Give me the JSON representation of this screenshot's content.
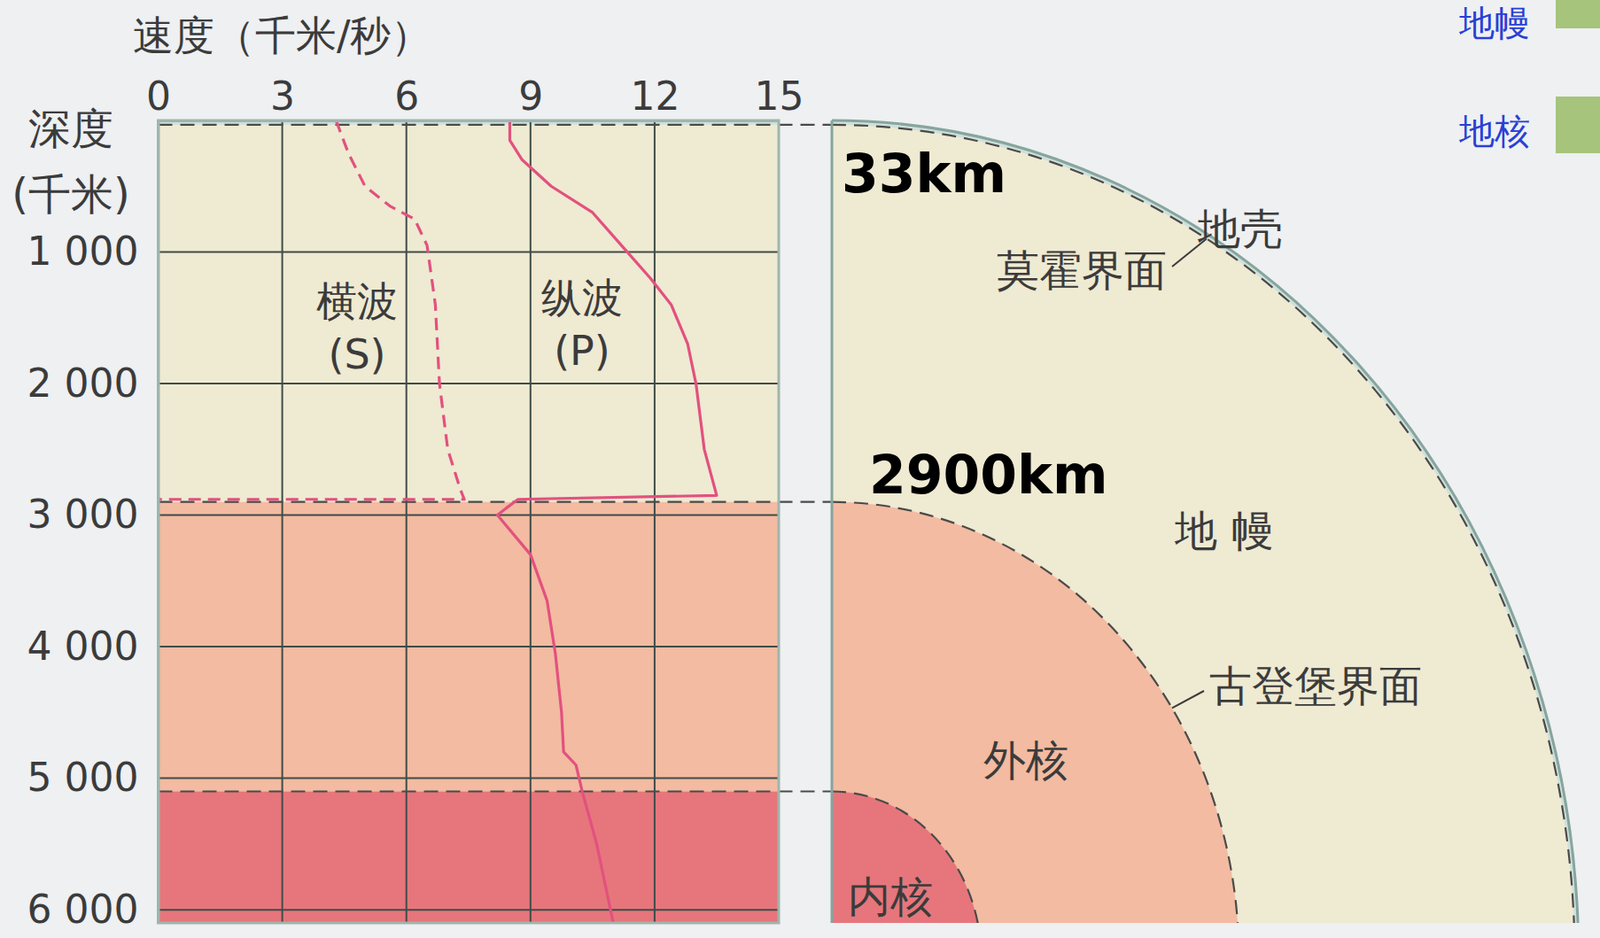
{
  "chart_data": {
    "type": "line",
    "x_label": "速度（千米/秒）",
    "y_label": "深度(千米)",
    "xlim": [
      0,
      15
    ],
    "xticks": [
      0,
      3,
      6,
      9,
      12,
      15
    ],
    "ylim": [
      0,
      6100
    ],
    "yticks": [
      {
        "value": 1000,
        "label": "1 000"
      },
      {
        "value": 2000,
        "label": "2 000"
      },
      {
        "value": 3000,
        "label": "3 000"
      },
      {
        "value": 4000,
        "label": "4 000"
      },
      {
        "value": 5000,
        "label": "5 000"
      },
      {
        "value": 6000,
        "label": "6 000"
      }
    ],
    "grid": true,
    "series": [
      {
        "name": "横波(S)",
        "color": "#e2517f",
        "line_style": "dashed",
        "depth": [
          0,
          250,
          500,
          650,
          750,
          950,
          1400,
          2000,
          2500,
          2800,
          2880,
          2880
        ],
        "values": [
          4.3,
          4.6,
          5.0,
          5.6,
          6.2,
          6.5,
          6.7,
          6.8,
          7.0,
          7.3,
          7.4,
          0
        ]
      },
      {
        "name": "纵波(P)",
        "color": "#e2517f",
        "line_style": "solid",
        "depth": [
          0,
          150,
          300,
          500,
          700,
          950,
          1200,
          1400,
          1700,
          2000,
          2500,
          2850,
          2880,
          2950,
          3000,
          3300,
          3650,
          4050,
          4500,
          4800,
          4900,
          5100,
          5500,
          6100
        ],
        "values": [
          8.5,
          8.5,
          8.8,
          9.5,
          10.5,
          11.2,
          11.9,
          12.4,
          12.8,
          13.0,
          13.2,
          13.5,
          8.7,
          8.4,
          8.2,
          9.0,
          9.4,
          9.6,
          9.75,
          9.8,
          10.1,
          10.25,
          10.6,
          11.0
        ]
      }
    ],
    "layers": [
      {
        "name": "地壳",
        "top": 0,
        "color": "#cfe0dc"
      },
      {
        "name": "地 幔",
        "top": 33,
        "color": "#efead2"
      },
      {
        "name": "外核",
        "top": 2900,
        "color": "#f3bba1"
      },
      {
        "name": "内核",
        "top": 5100,
        "color": "#e6767c"
      }
    ],
    "discontinuities": [
      {
        "name": "莫霍界面",
        "depth": 33
      },
      {
        "name": "古登堡界面",
        "depth": 2900
      }
    ],
    "annotations": [
      {
        "text": "33km",
        "depth": 33
      },
      {
        "text": "2900km",
        "depth": 2900
      }
    ]
  },
  "sidebar": [
    "地幔",
    "地核"
  ]
}
